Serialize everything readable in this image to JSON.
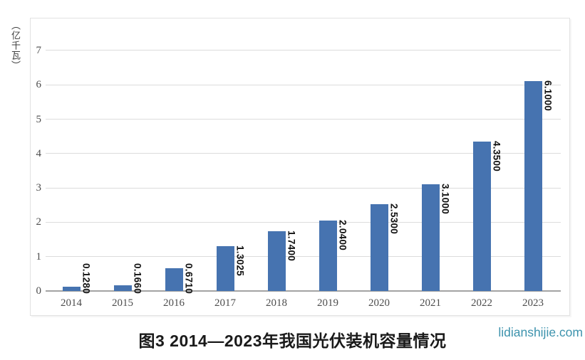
{
  "chart_data": {
    "type": "bar",
    "title": "图3 2014—2023年我国光伏装机容量情况",
    "ylabel_unit": "（亿千瓦）",
    "categories": [
      "2014",
      "2015",
      "2016",
      "2017",
      "2018",
      "2019",
      "2020",
      "2021",
      "2022",
      "2023"
    ],
    "values": [
      0.128,
      0.166,
      0.671,
      1.3025,
      1.74,
      2.04,
      2.53,
      3.1,
      4.35,
      6.1
    ],
    "value_labels": [
      "0.1280",
      "0.1660",
      "0.6710",
      "1.3025",
      "1.7400",
      "2.0400",
      "2.5300",
      "3.1000",
      "4.3500",
      "6.1000"
    ],
    "ylim": [
      0,
      7
    ],
    "ytick_step": 1,
    "yticks": [
      "0",
      "1",
      "2",
      "3",
      "4",
      "5",
      "6",
      "7"
    ],
    "grid": true,
    "legend_position": "none",
    "bar_color": "#4673b0",
    "gridline_color": "#dcdcdc",
    "axis_line_color": "#a3a3a3",
    "tick_label_color": "#4d4d4d",
    "value_label_color": "#111111"
  },
  "watermark": {
    "text": "lidianshijie.com",
    "color": "#3d93ad"
  }
}
